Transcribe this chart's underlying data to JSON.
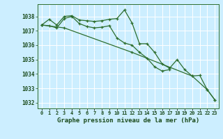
{
  "title": "Graphe pression niveau de la mer (hPa)",
  "bg_color": "#cceeff",
  "plot_bg_color": "#cceeff",
  "grid_color": "#ffffff",
  "line_color": "#2d6e2d",
  "x_labels": [
    "0",
    "1",
    "2",
    "3",
    "4",
    "5",
    "6",
    "7",
    "8",
    "9",
    "10",
    "11",
    "12",
    "13",
    "14",
    "15",
    "16",
    "17",
    "18",
    "19",
    "20",
    "21",
    "22",
    "23"
  ],
  "ylim": [
    1031.6,
    1038.85
  ],
  "yticks": [
    1032,
    1033,
    1034,
    1035,
    1036,
    1037,
    1038
  ],
  "line1_x": [
    0,
    1,
    2,
    3,
    4,
    5,
    6,
    7,
    8,
    9,
    10,
    11,
    12,
    13,
    14,
    15,
    16,
    17,
    18,
    19,
    20,
    21,
    22,
    23
  ],
  "line1_y": [
    1037.4,
    1037.8,
    1037.4,
    1038.0,
    1038.05,
    1037.75,
    1037.7,
    1037.65,
    1037.7,
    1037.8,
    1037.85,
    1038.45,
    1037.55,
    1036.1,
    1036.1,
    1035.5,
    1034.7,
    1034.4,
    1035.0,
    1034.3,
    1033.85,
    1033.9,
    1032.9,
    1032.2
  ],
  "line2_x": [
    0,
    1,
    2,
    3,
    4,
    5,
    6,
    7,
    8,
    9,
    10,
    11,
    12,
    13,
    14,
    15,
    16,
    17
  ],
  "line2_y": [
    1037.4,
    1037.35,
    1037.2,
    1037.85,
    1038.0,
    1037.5,
    1037.3,
    1037.2,
    1037.25,
    1037.35,
    1036.5,
    1036.15,
    1036.0,
    1035.5,
    1035.1,
    1034.5,
    1034.2,
    1034.3
  ],
  "line3_x": [
    0,
    3,
    12,
    20,
    22,
    23
  ],
  "line3_y": [
    1037.4,
    1037.2,
    1035.5,
    1033.85,
    1032.9,
    1032.2
  ]
}
